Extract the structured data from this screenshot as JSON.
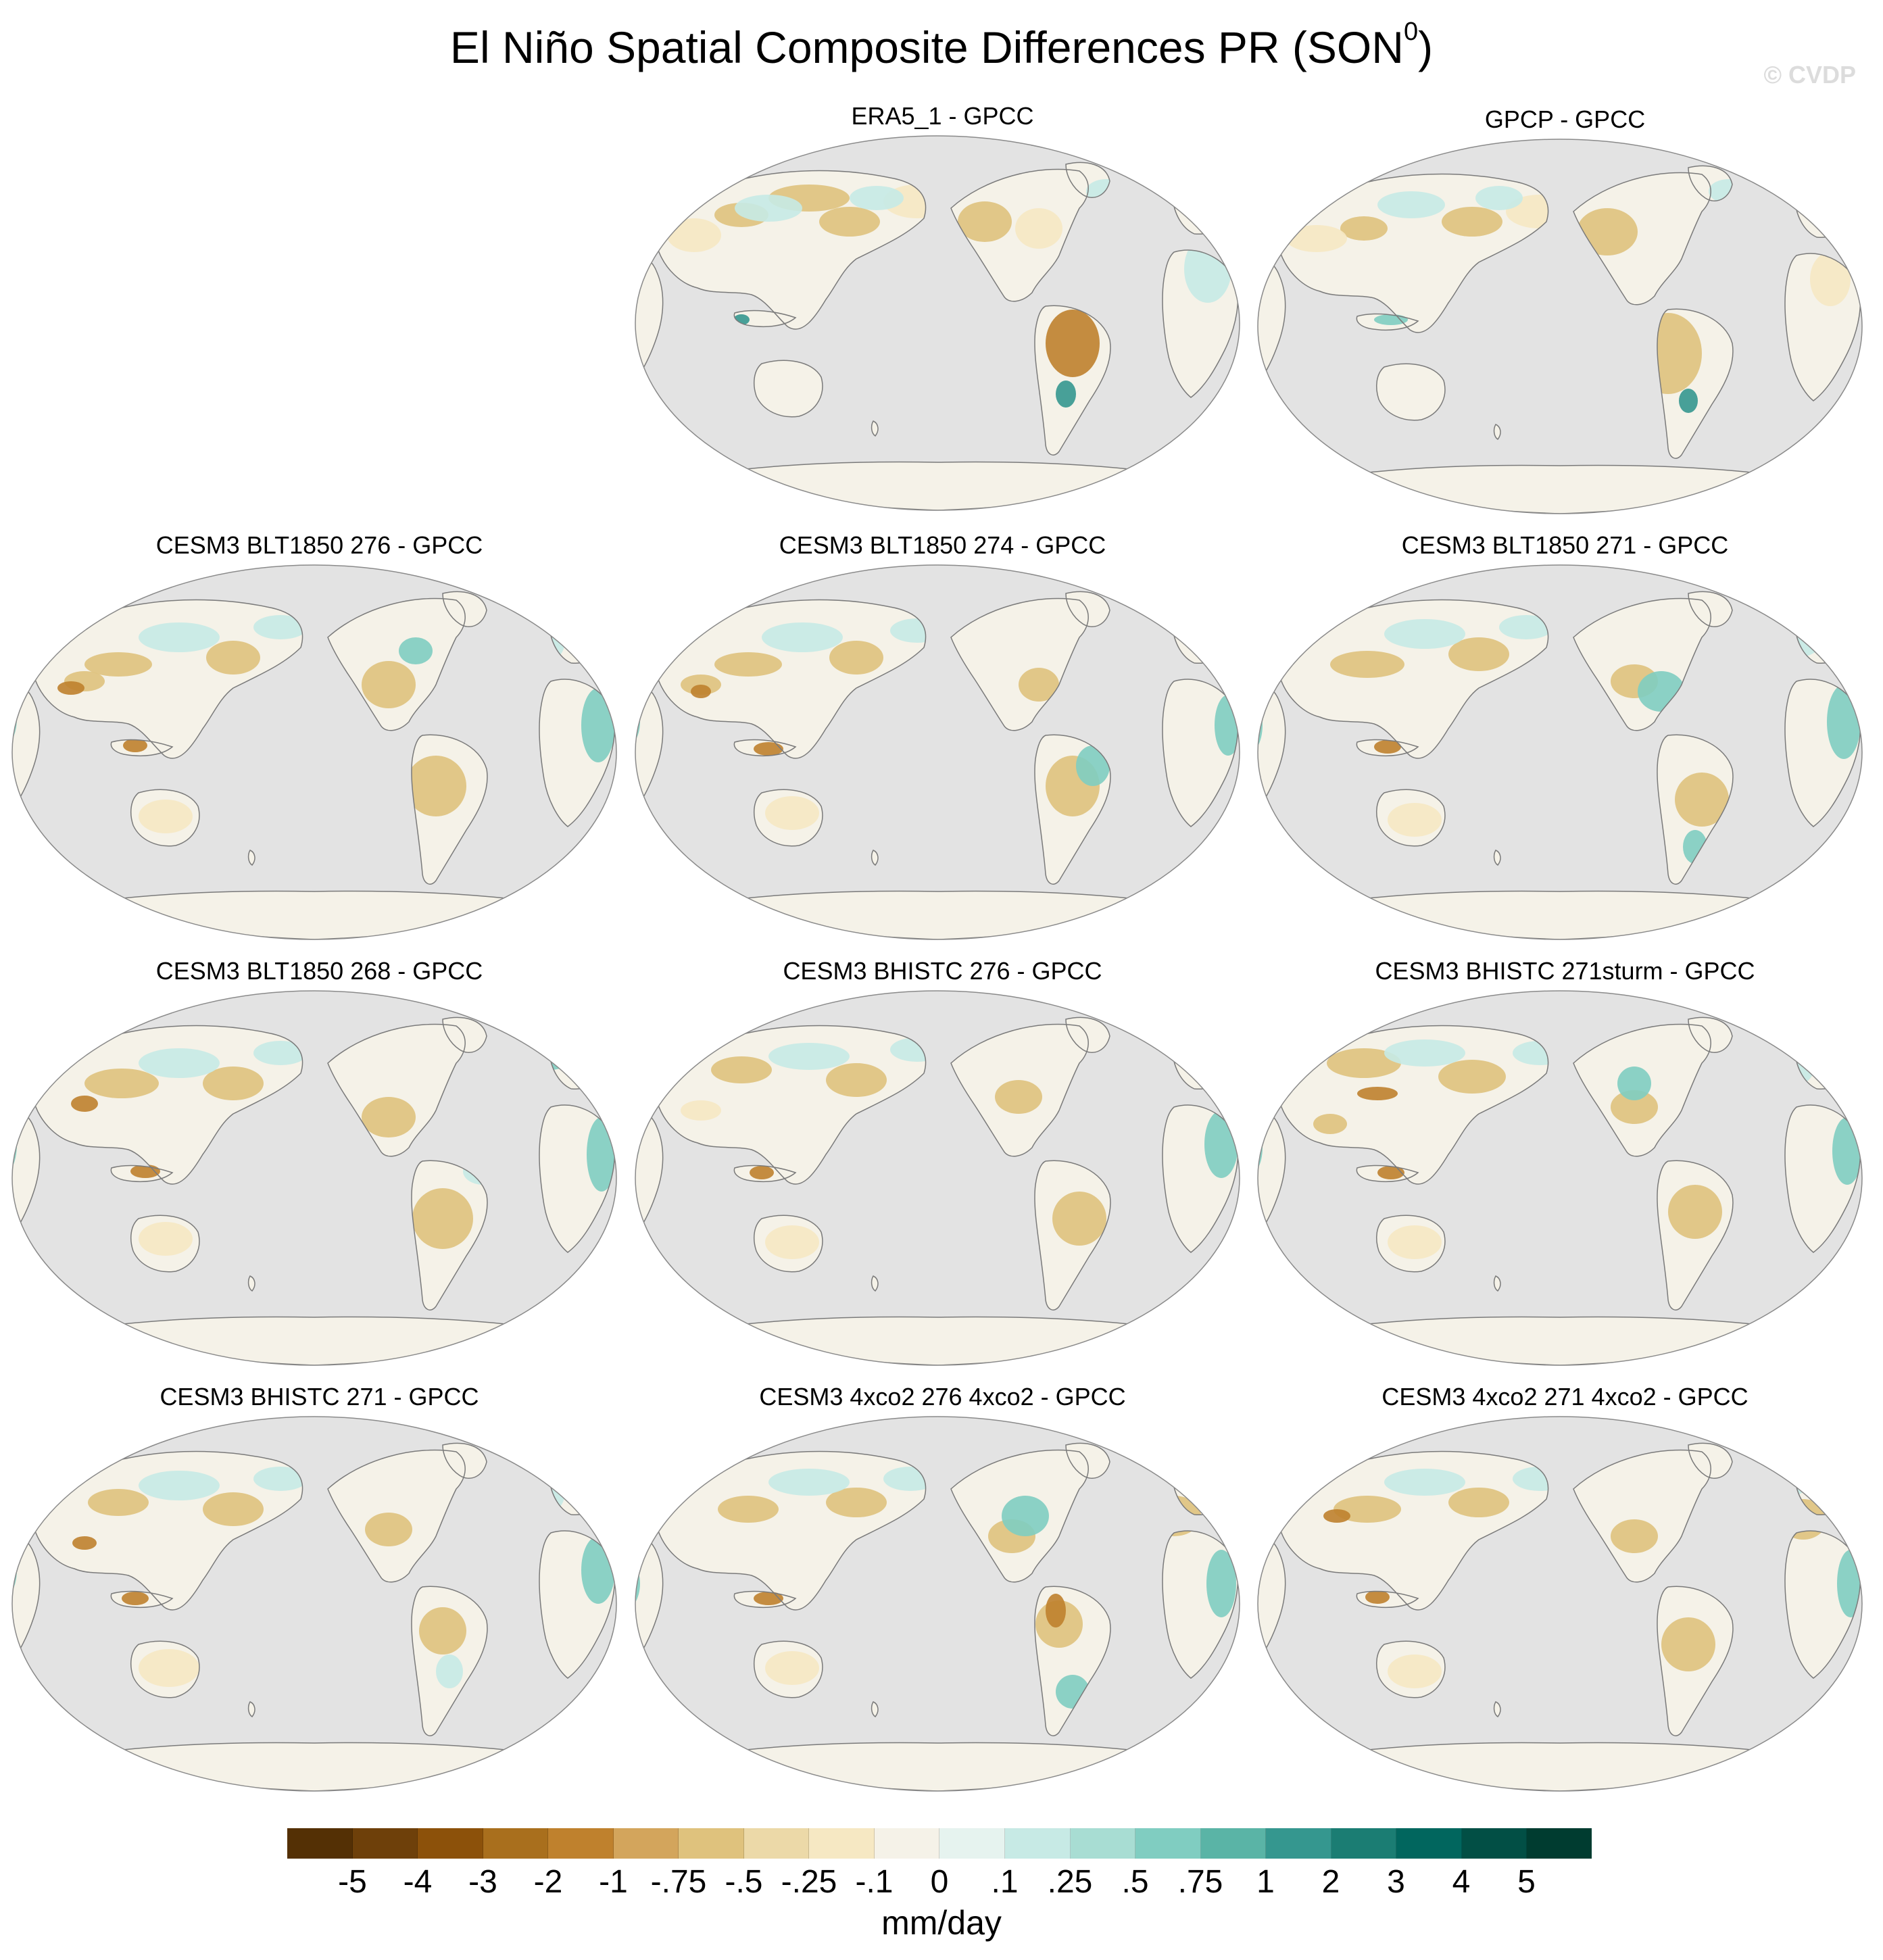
{
  "title": "El Niño Spatial Composite Differences PR (SON",
  "title_superscript": "0",
  "title_close": ")",
  "watermark": "© CVDP",
  "panels": [
    {
      "title": "ERA5_1 - GPCC"
    },
    {
      "title": "GPCP - GPCC"
    },
    {
      "title": "CESM3 BLT1850 276 - GPCC"
    },
    {
      "title": "CESM3 BLT1850 274 - GPCC"
    },
    {
      "title": "CESM3 BLT1850 271 - GPCC"
    },
    {
      "title": "CESM3 BLT1850 268 - GPCC"
    },
    {
      "title": "CESM3 BHISTC 276 - GPCC"
    },
    {
      "title": "CESM3 BHISTC 271sturm - GPCC"
    },
    {
      "title": "CESM3 BHISTC 271 - GPCC"
    },
    {
      "title": "CESM3 4xco2 276 4xco2 - GPCC"
    },
    {
      "title": "CESM3 4xco2 271 4xco2 - GPCC"
    }
  ],
  "colorbar": {
    "labels": [
      "-5",
      "-4",
      "-3",
      "-2",
      "-1",
      "-.75",
      "-.5",
      "-.25",
      "-.1",
      "0",
      ".1",
      ".25",
      ".5",
      ".75",
      "1",
      "2",
      "3",
      "4",
      "5"
    ],
    "colors": [
      "#543005",
      "#6e400a",
      "#8c510a",
      "#a96f1d",
      "#bf812d",
      "#d3a55c",
      "#dfc27d",
      "#ecd9a8",
      "#f6e8c3",
      "#f5f2e8",
      "#e6f3ef",
      "#c7eae5",
      "#a8ddd3",
      "#80cdc1",
      "#5ab4a6",
      "#35978f",
      "#1b7d73",
      "#01665e",
      "#024f45",
      "#003c30"
    ],
    "units": "mm/day"
  },
  "map_colors": {
    "ocean": "#e3e3e3",
    "coast": "#7a7a7a",
    "dry_strong": "#bf812d",
    "dry": "#dfc27d",
    "dry_light": "#f6e8c3",
    "neutral": "#f5f2e8",
    "wet_light": "#c7eae5",
    "wet": "#80cdc1",
    "wet_strong": "#35978f"
  }
}
